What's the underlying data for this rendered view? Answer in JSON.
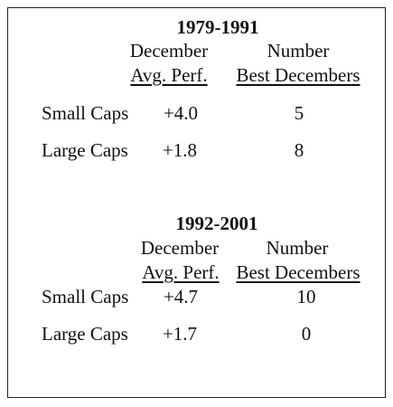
{
  "sections": [
    {
      "title": "1979-1991",
      "col1_header_line1": "December",
      "col1_header_line2": "Avg. Perf.",
      "col2_header_line1": "Number",
      "col2_header_line2": "Best Decembers",
      "rows": [
        {
          "label": "Small Caps",
          "avg": "+4.0",
          "best": "5"
        },
        {
          "label": "Large Caps",
          "avg": "+1.8",
          "best": "8"
        }
      ]
    },
    {
      "title": "1992-2001",
      "col1_header_line1": "December",
      "col1_header_line2": "Avg. Perf.",
      "col2_header_line1": "Number",
      "col2_header_line2": "Best Decembers",
      "rows": [
        {
          "label": "Small Caps",
          "avg": "+4.7",
          "best": "10"
        },
        {
          "label": "Large Caps",
          "avg": "+1.7",
          "best": "0"
        }
      ]
    }
  ]
}
